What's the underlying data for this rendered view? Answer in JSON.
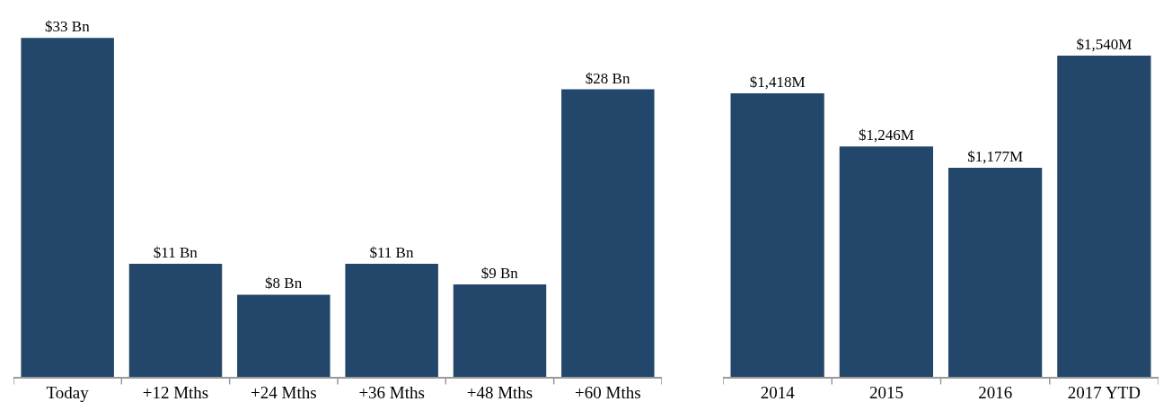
{
  "chart_data": [
    {
      "type": "bar",
      "categories": [
        "Today",
        "+12 Mths",
        "+24 Mths",
        "+36 Mths",
        "+48 Mths",
        "+60 Mths"
      ],
      "values": [
        33,
        11,
        8,
        11,
        9,
        28
      ],
      "value_labels": [
        "$33 Bn",
        "$11 Bn",
        "$8 Bn",
        "$11 Bn",
        "$9 Bn",
        "$28 Bn"
      ],
      "color": "#22476a",
      "ylim": [
        0,
        36.7
      ],
      "tick_labels": "x",
      "grid": false,
      "legend": false
    },
    {
      "type": "bar",
      "categories": [
        "2014",
        "2015",
        "2016",
        "2017 YTD"
      ],
      "values": [
        1418,
        1246,
        1177,
        1540
      ],
      "value_labels": [
        "$1,418M",
        "$1,246M",
        "$1,177M",
        "$1,540M"
      ],
      "color": "#22476a",
      "ylim": [
        500,
        1720
      ],
      "tick_labels": "x",
      "grid": false,
      "legend": false
    }
  ]
}
